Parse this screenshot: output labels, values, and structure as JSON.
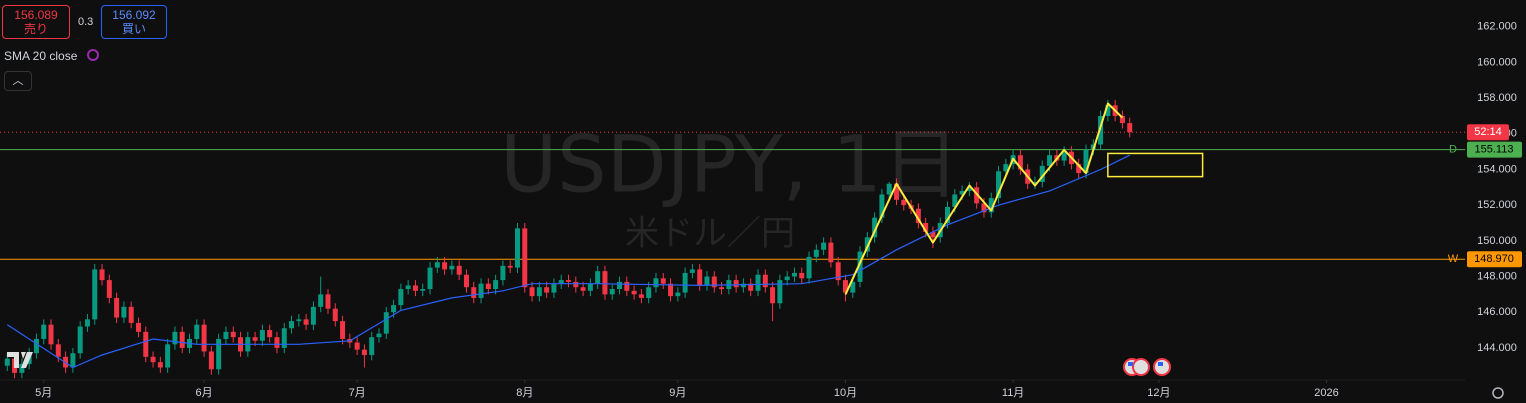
{
  "toolbar": {
    "sell_price": 156.089,
    "sell_label": "売り",
    "spread": 0.3,
    "buy_price": 156.092,
    "buy_label": "買い"
  },
  "chart_data": {
    "type": "candlestick",
    "title": "USDJPY, 1日",
    "subtitle": "米ドル／円",
    "up_color": "#089981",
    "down_color": "#f23645",
    "grid": false,
    "open": [
      143.0,
      143.4,
      142.6,
      143.1,
      143.7,
      144.5,
      145.3,
      144.2,
      143.5,
      142.9,
      143.7,
      145.2,
      145.6,
      148.4,
      147.8,
      146.8,
      145.7,
      146.3,
      145.4,
      144.9,
      143.5,
      143.2,
      142.9,
      144.2,
      144.9,
      144.0,
      144.5,
      145.3,
      143.8,
      142.8,
      144.5,
      144.9,
      144.6,
      143.8,
      144.6,
      144.4,
      145.0,
      144.6,
      144.0,
      145.1,
      145.5,
      145.6,
      145.3,
      146.3,
      147.0,
      146.2,
      145.5,
      144.5,
      144.3,
      143.9,
      143.6,
      144.6,
      144.8,
      146.0,
      146.4,
      147.3,
      147.5,
      147.2,
      147.3,
      148.5,
      148.8,
      148.4,
      148.6,
      148.1,
      147.4,
      146.8,
      147.6,
      147.3,
      147.8,
      148.6,
      148.5,
      150.7,
      147.4,
      146.9,
      147.4,
      147.1,
      147.6,
      147.8,
      147.7,
      147.4,
      147.2,
      147.6,
      148.3,
      147.0,
      147.3,
      147.7,
      147.2,
      147.0,
      146.8,
      147.4,
      147.9,
      147.6,
      146.9,
      147.1,
      148.2,
      148.4,
      147.5,
      148.0,
      147.4,
      147.3,
      147.8,
      147.4,
      147.6,
      147.2,
      148.1,
      147.4,
      146.5,
      147.8,
      148.0,
      148.2,
      147.9,
      149.1,
      149.5,
      149.9,
      148.8,
      147.8,
      147.1,
      147.7,
      149.4,
      150.2,
      151.3,
      152.6,
      153.2,
      152.3,
      152.0,
      151.8,
      151.0,
      150.5,
      150.2,
      151.0,
      151.9,
      152.6,
      152.8,
      153.0,
      152.1,
      151.6,
      152.4,
      153.9,
      154.3,
      154.8,
      154.0,
      153.2,
      153.3,
      154.2,
      154.8,
      154.5,
      155.0,
      154.3,
      153.8,
      155.1,
      155.4,
      157.0,
      157.6,
      157.0,
      156.6
    ],
    "high": [
      143.7,
      143.7,
      143.4,
      144.0,
      144.8,
      145.6,
      145.6,
      144.5,
      143.8,
      144.0,
      145.5,
      145.9,
      148.7,
      148.7,
      148.1,
      147.1,
      146.6,
      146.6,
      145.7,
      145.2,
      143.8,
      143.5,
      144.5,
      145.2,
      145.2,
      144.8,
      145.6,
      145.6,
      144.1,
      144.8,
      145.2,
      145.2,
      144.9,
      144.9,
      144.9,
      145.3,
      145.3,
      144.9,
      145.4,
      145.8,
      145.9,
      145.9,
      146.6,
      148.0,
      147.3,
      146.5,
      145.8,
      144.8,
      144.6,
      144.2,
      144.9,
      145.1,
      146.3,
      146.7,
      147.6,
      147.8,
      147.8,
      147.6,
      148.8,
      149.1,
      149.1,
      148.9,
      148.9,
      148.4,
      147.7,
      147.9,
      147.9,
      148.1,
      148.9,
      148.9,
      151.0,
      151.0,
      147.7,
      147.7,
      147.7,
      147.9,
      148.1,
      148.1,
      148.0,
      147.7,
      147.9,
      148.6,
      148.6,
      147.6,
      148.0,
      148.0,
      147.5,
      147.3,
      147.7,
      148.2,
      148.2,
      147.9,
      147.4,
      148.5,
      148.7,
      148.7,
      148.3,
      148.3,
      147.7,
      148.1,
      148.1,
      147.9,
      147.9,
      148.4,
      148.4,
      147.7,
      148.1,
      148.3,
      148.5,
      148.5,
      149.4,
      149.8,
      150.2,
      150.2,
      149.1,
      148.1,
      148.0,
      149.7,
      150.5,
      151.6,
      152.9,
      153.3,
      153.5,
      152.6,
      152.3,
      152.1,
      151.3,
      150.8,
      151.3,
      152.2,
      152.9,
      153.1,
      153.3,
      153.3,
      152.4,
      152.7,
      154.2,
      154.6,
      155.1,
      155.1,
      154.3,
      153.6,
      154.5,
      155.1,
      155.1,
      155.3,
      155.3,
      154.6,
      155.4,
      155.7,
      157.3,
      157.9,
      157.9,
      157.3,
      156.9
    ],
    "low": [
      142.7,
      142.3,
      142.3,
      142.8,
      143.4,
      144.2,
      143.9,
      143.2,
      142.6,
      142.6,
      143.4,
      144.9,
      145.3,
      147.5,
      146.5,
      145.4,
      145.4,
      145.1,
      144.6,
      143.2,
      142.9,
      142.6,
      142.6,
      143.9,
      143.7,
      143.7,
      144.2,
      143.5,
      142.5,
      142.5,
      144.2,
      144.3,
      143.5,
      143.5,
      144.1,
      144.1,
      144.3,
      143.7,
      143.7,
      144.8,
      145.2,
      145.0,
      145.0,
      146.0,
      145.9,
      145.2,
      144.2,
      144.0,
      143.6,
      142.9,
      143.3,
      144.3,
      144.5,
      145.7,
      146.1,
      147.0,
      146.9,
      146.9,
      147.0,
      148.2,
      148.1,
      148.1,
      147.8,
      147.1,
      146.5,
      146.5,
      147.0,
      147.0,
      147.5,
      148.2,
      148.2,
      147.1,
      146.6,
      146.6,
      146.8,
      146.8,
      147.3,
      147.4,
      147.1,
      146.9,
      146.9,
      147.3,
      146.7,
      146.7,
      147.0,
      146.9,
      146.7,
      146.5,
      146.5,
      147.1,
      147.3,
      146.6,
      146.6,
      146.8,
      147.9,
      147.2,
      147.2,
      147.1,
      147.0,
      147.0,
      147.1,
      147.1,
      146.9,
      146.9,
      147.1,
      145.5,
      146.2,
      147.5,
      147.7,
      147.6,
      147.6,
      148.8,
      149.2,
      148.5,
      147.5,
      146.6,
      146.8,
      147.4,
      149.1,
      149.9,
      151.0,
      152.3,
      152.0,
      151.7,
      151.5,
      150.7,
      150.2,
      149.6,
      149.9,
      150.7,
      151.6,
      152.3,
      152.5,
      151.8,
      151.3,
      151.3,
      152.1,
      153.6,
      154.0,
      153.7,
      152.9,
      152.9,
      153.0,
      153.9,
      154.2,
      154.2,
      154.0,
      153.5,
      153.5,
      154.8,
      155.1,
      156.7,
      156.7,
      156.3,
      155.8
    ],
    "close": [
      143.4,
      142.6,
      143.1,
      143.7,
      144.5,
      145.3,
      144.2,
      143.5,
      142.9,
      143.7,
      145.2,
      145.6,
      148.4,
      147.8,
      146.8,
      145.7,
      146.3,
      145.4,
      144.9,
      143.5,
      143.2,
      142.9,
      144.2,
      144.9,
      144.0,
      144.5,
      145.3,
      143.8,
      142.8,
      144.5,
      144.9,
      144.6,
      143.8,
      144.6,
      144.4,
      145.0,
      144.6,
      144.0,
      145.1,
      145.5,
      145.6,
      145.3,
      146.3,
      147.0,
      146.2,
      145.5,
      144.5,
      144.3,
      143.9,
      143.6,
      144.6,
      144.8,
      146.0,
      146.4,
      147.3,
      147.5,
      147.2,
      147.3,
      148.5,
      148.8,
      148.4,
      148.6,
      148.1,
      147.4,
      146.8,
      147.6,
      147.3,
      147.8,
      148.6,
      148.5,
      150.7,
      147.4,
      146.9,
      147.4,
      147.1,
      147.6,
      147.8,
      147.7,
      147.4,
      147.2,
      147.6,
      148.3,
      147.0,
      147.3,
      147.7,
      147.2,
      147.0,
      146.8,
      147.4,
      147.9,
      147.6,
      146.9,
      147.1,
      148.2,
      148.4,
      147.5,
      148.0,
      147.4,
      147.3,
      147.8,
      147.4,
      147.6,
      147.2,
      148.1,
      147.4,
      146.5,
      147.8,
      148.0,
      148.2,
      147.9,
      149.1,
      149.5,
      149.9,
      148.8,
      147.8,
      147.1,
      147.7,
      149.4,
      150.2,
      151.3,
      152.6,
      153.2,
      152.3,
      152.0,
      151.8,
      151.0,
      150.5,
      150.2,
      151.0,
      151.9,
      152.6,
      152.8,
      153.0,
      152.1,
      151.6,
      152.4,
      153.9,
      154.3,
      154.8,
      154.0,
      153.2,
      153.3,
      154.2,
      154.8,
      154.5,
      155.0,
      154.3,
      153.8,
      155.1,
      155.4,
      157.0,
      157.6,
      157.0,
      156.6,
      156.09
    ],
    "xlim": [
      -1,
      200
    ],
    "xticks": [
      {
        "value": 5,
        "label": "5月"
      },
      {
        "value": 27,
        "label": "6月"
      },
      {
        "value": 48,
        "label": "7月"
      },
      {
        "value": 71,
        "label": "8月"
      },
      {
        "value": 92,
        "label": "9月"
      },
      {
        "value": 115,
        "label": "10月"
      },
      {
        "value": 138,
        "label": "11月"
      },
      {
        "value": 158,
        "label": "12月"
      },
      {
        "value": 181,
        "label": "2026"
      }
    ],
    "ylim": [
      142.2,
      163.5
    ],
    "yticks": [
      {
        "value": 144,
        "label": "144.000"
      },
      {
        "value": 146,
        "label": "146.000"
      },
      {
        "value": 148,
        "label": "148.000"
      },
      {
        "value": 150,
        "label": "150.000"
      },
      {
        "value": 152,
        "label": "152.000"
      },
      {
        "value": 154,
        "label": "154.000"
      },
      {
        "value": 156,
        "label": "156.000"
      },
      {
        "value": 158,
        "label": "158.000"
      },
      {
        "value": 160,
        "label": "160.000"
      },
      {
        "value": 162,
        "label": "162.000"
      }
    ],
    "sma": {
      "name": "SMA 20 close",
      "color": "#2962ff",
      "x": [
        0,
        9,
        13,
        20,
        26,
        33,
        40,
        47,
        54,
        61,
        68,
        72,
        81,
        95,
        109,
        116,
        122,
        129,
        136,
        143,
        150,
        154
      ],
      "values": [
        145.3,
        142.9,
        143.6,
        144.5,
        144.2,
        144.2,
        144.2,
        144.4,
        146.1,
        146.8,
        147.2,
        147.6,
        147.6,
        147.5,
        147.6,
        148.1,
        149.5,
        150.9,
        152.0,
        152.8,
        154.0,
        154.8
      ]
    },
    "zigzag": {
      "color": "#ffeb3b",
      "x": [
        115,
        122,
        127,
        132,
        135,
        138,
        141,
        145,
        148,
        151,
        153
      ],
      "values": [
        147.0,
        153.2,
        149.9,
        153.1,
        151.7,
        154.6,
        153.1,
        155.1,
        153.8,
        157.7,
        156.9
      ]
    },
    "box": {
      "color": "#ffeb3b",
      "x": [
        151,
        164
      ],
      "y": [
        153.6,
        154.9
      ]
    },
    "price_lines": [
      {
        "value": 155.113,
        "label": "155.113",
        "tag": "D",
        "color": "#4caf50"
      },
      {
        "value": 148.97,
        "label": "148.970",
        "tag": "W",
        "color": "#ff9800"
      }
    ],
    "current_price": {
      "countdown": "52:14",
      "color": "#f23645"
    }
  }
}
